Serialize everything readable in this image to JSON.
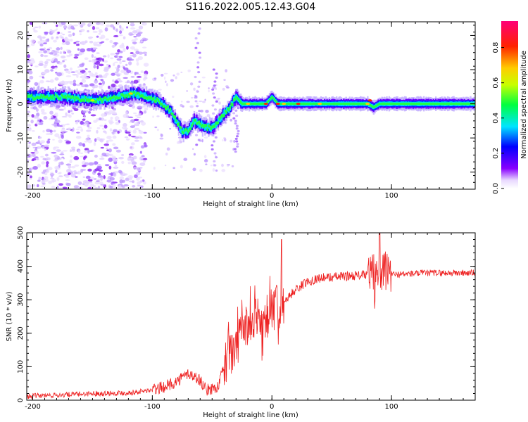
{
  "title": "S116.2022.005.12.43.G04",
  "colors": {
    "snr_line": "#ee2222",
    "axis": "#000000"
  },
  "chart_data": [
    {
      "type": "heatmap",
      "xlabel": "Height of straight line (km)",
      "ylabel": "Frequency (Hz)",
      "xlim": [
        -205,
        170
      ],
      "ylim": [
        -25,
        24
      ],
      "xticks": [
        -200,
        -100,
        0,
        100
      ],
      "yticks": [
        -20,
        -10,
        0,
        10,
        20
      ],
      "colorbar": {
        "label": "Normalized spectral amplitude",
        "range": [
          0.0,
          0.95
        ],
        "ticks": [
          0.0,
          0.2,
          0.4,
          0.6,
          0.8
        ],
        "colormap": "rainbow"
      },
      "ridge": [
        [
          -205,
          2
        ],
        [
          -190,
          2
        ],
        [
          -175,
          2
        ],
        [
          -160,
          1.5
        ],
        [
          -145,
          1
        ],
        [
          -130,
          2
        ],
        [
          -115,
          3
        ],
        [
          -105,
          2
        ],
        [
          -95,
          1
        ],
        [
          -85,
          -2
        ],
        [
          -80,
          -5
        ],
        [
          -75,
          -8
        ],
        [
          -70,
          -8
        ],
        [
          -65,
          -5
        ],
        [
          -60,
          -6
        ],
        [
          -55,
          -7
        ],
        [
          -50,
          -7
        ],
        [
          -45,
          -5
        ],
        [
          -40,
          -3
        ],
        [
          -35,
          -1
        ],
        [
          -30,
          2
        ],
        [
          -25,
          0
        ],
        [
          -20,
          0
        ],
        [
          -10,
          0
        ],
        [
          -5,
          0
        ],
        [
          0,
          2
        ],
        [
          5,
          0
        ],
        [
          20,
          0
        ],
        [
          40,
          0
        ],
        [
          60,
          0
        ],
        [
          80,
          0
        ],
        [
          85,
          -1
        ],
        [
          90,
          0
        ],
        [
          100,
          0
        ],
        [
          130,
          0
        ],
        [
          170,
          0
        ]
      ]
    },
    {
      "type": "line",
      "xlabel": "Height of straight line (km)",
      "ylabel": "SNR (10 * v/v)",
      "xlim": [
        -205,
        170
      ],
      "ylim": [
        0,
        500
      ],
      "xticks": [
        -200,
        -100,
        0,
        100
      ],
      "yticks": [
        0,
        100,
        200,
        300,
        400,
        500
      ],
      "series": [
        {
          "x": [
            -205,
            -180,
            -150,
            -120,
            -100,
            -90,
            -80,
            -70,
            -60,
            -55,
            -45,
            -40,
            -30,
            -20,
            -10,
            0,
            10,
            20,
            30,
            40,
            60,
            80,
            85,
            90,
            95,
            100,
            130,
            170
          ],
          "y": [
            12,
            15,
            20,
            22,
            30,
            40,
            55,
            80,
            60,
            30,
            40,
            100,
            170,
            230,
            240,
            265,
            295,
            330,
            355,
            365,
            370,
            375,
            385,
            390,
            385,
            375,
            380,
            380
          ]
        }
      ]
    }
  ]
}
